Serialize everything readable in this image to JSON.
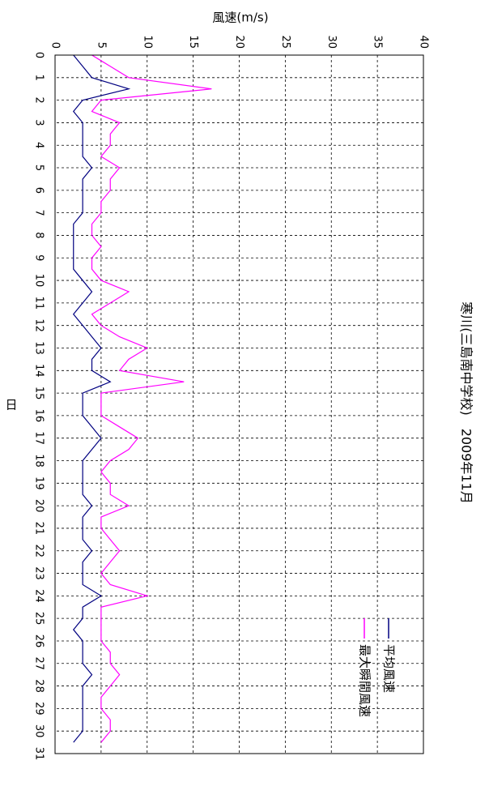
{
  "chart_data": {
    "type": "line",
    "title": "寒川(三島南中学校)　2009年11月",
    "x_label": "日",
    "y_label": "風速(m/s)",
    "x": [
      0,
      0.5,
      1,
      1.5,
      2,
      2.5,
      3,
      3.5,
      4,
      4.5,
      5,
      5.5,
      6,
      6.5,
      7,
      7.5,
      8,
      8.5,
      9,
      9.5,
      10,
      10.5,
      11,
      11.5,
      12,
      12.5,
      13,
      13.5,
      14,
      14.5,
      15,
      15.5,
      16,
      16.5,
      17,
      17.5,
      18,
      18.5,
      19,
      19.5,
      20,
      20.5,
      21,
      21.5,
      22,
      22.5,
      23,
      23.5,
      24,
      24.5,
      25,
      25.5,
      26,
      26.5,
      27,
      27.5,
      28,
      28.5,
      29,
      29.5,
      30,
      30.5
    ],
    "series": [
      {
        "name": "平均風速",
        "color": "#000080",
        "values": [
          2,
          3,
          4,
          8,
          3,
          2,
          3,
          3,
          3,
          3,
          4,
          3,
          3,
          3,
          3,
          2,
          2,
          2,
          2,
          2,
          3,
          4,
          3,
          2,
          3,
          4,
          5,
          4,
          4,
          6,
          3,
          3,
          3,
          4,
          5,
          4,
          3,
          3,
          3,
          3,
          4,
          3,
          3,
          3,
          4,
          3,
          3,
          3,
          5,
          3,
          3,
          2,
          3,
          3,
          3,
          4,
          3,
          3,
          3,
          3,
          3,
          2
        ]
      },
      {
        "name": "最大瞬間風速",
        "color": "#ff00ff",
        "values": [
          4,
          6,
          8,
          17,
          5,
          4,
          7,
          6,
          6,
          5,
          7,
          6,
          6,
          5,
          5,
          4,
          4,
          5,
          4,
          4,
          5,
          8,
          6,
          4,
          5,
          7,
          10,
          8,
          7,
          14,
          5,
          5,
          5,
          7,
          9,
          8,
          6,
          5,
          6,
          6,
          8,
          5,
          5,
          6,
          7,
          6,
          5,
          6,
          10,
          5,
          5,
          5,
          5,
          6,
          6,
          7,
          6,
          5,
          5,
          6,
          6,
          5
        ]
      }
    ],
    "xlim": [
      0,
      31
    ],
    "xticks": [
      0,
      1,
      2,
      3,
      4,
      5,
      6,
      7,
      8,
      9,
      10,
      11,
      12,
      13,
      14,
      15,
      16,
      17,
      18,
      19,
      20,
      21,
      22,
      23,
      24,
      25,
      26,
      27,
      28,
      29,
      30,
      31
    ],
    "ylim": [
      0,
      40
    ],
    "yticks": [
      0,
      5,
      10,
      15,
      20,
      25,
      30,
      35,
      40
    ],
    "grid": true,
    "legend": "upper right"
  }
}
